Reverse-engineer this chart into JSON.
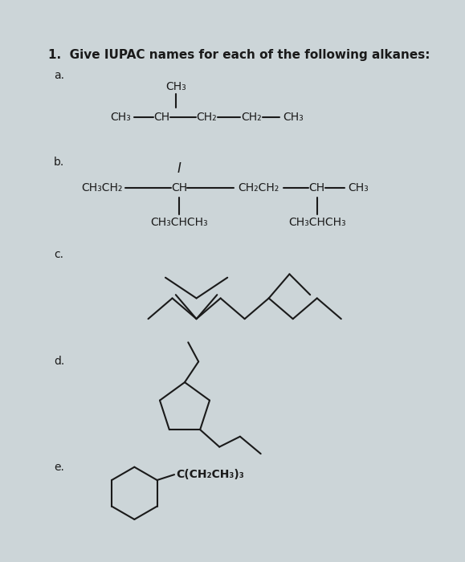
{
  "title": "1.  Give IUPAC names for each of the following alkanes:",
  "bg_color": "#ccd5d8",
  "text_color": "#1a1a1a",
  "label_a": "a.",
  "label_b": "b.",
  "label_c": "c.",
  "label_d": "d.",
  "label_e": "e.",
  "struct_e_label": "C(CH₂CH₃)₃"
}
